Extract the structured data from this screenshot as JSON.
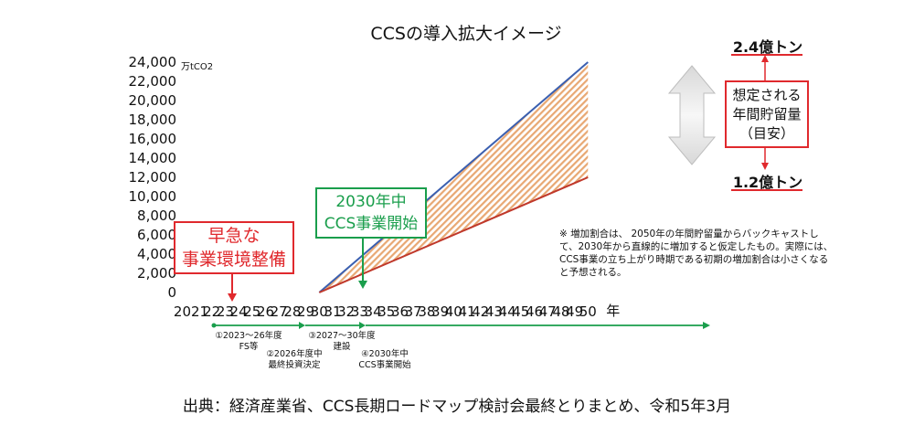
{
  "title": "CCSの導入拡大イメージ",
  "chart_data": {
    "type": "line",
    "y_unit": "万tCO2",
    "x_unit": "年",
    "ylim": [
      0,
      24000
    ],
    "y_ticks": [
      "24,000",
      "22,000",
      "20,000",
      "18,000",
      "16,000",
      "14,000",
      "12,000",
      "10,000",
      "8,000",
      "6,000",
      "4,000",
      "2,000",
      "0"
    ],
    "y_tick_values": [
      24000,
      22000,
      20000,
      18000,
      16000,
      14000,
      12000,
      10000,
      8000,
      6000,
      4000,
      2000,
      0
    ],
    "x_ticks": [
      "2021",
      "22",
      "23",
      "24",
      "25",
      "26",
      "27",
      "28",
      "29",
      "30",
      "31",
      "32",
      "33",
      "34",
      "35",
      "36",
      "37",
      "38",
      "39",
      "40",
      "41",
      "42",
      "43",
      "44",
      "45",
      "46",
      "47",
      "48",
      "49",
      "50"
    ],
    "x_tick_years": [
      2021,
      2022,
      2023,
      2024,
      2025,
      2026,
      2027,
      2028,
      2029,
      2030,
      2031,
      2032,
      2033,
      2034,
      2035,
      2036,
      2037,
      2038,
      2039,
      2040,
      2041,
      2042,
      2043,
      2044,
      2045,
      2046,
      2047,
      2048,
      2049,
      2050
    ],
    "series": [
      {
        "name": "",
        "color": "#3a5fb0",
        "x": [
          2030,
          2050
        ],
        "y": [
          0,
          24000
        ]
      },
      {
        "name": "",
        "color": "#c0392b",
        "x": [
          2030,
          2050
        ],
        "y": [
          0,
          12000
        ]
      }
    ],
    "band_color": "#e8a873",
    "grid": false,
    "legend": "none"
  },
  "annotations": {
    "upper_label": "2.4億トン",
    "lower_label": "1.2億トン",
    "capacity_lines": [
      "想定される",
      "年間貯留量",
      "（目安）"
    ],
    "urgent_lines": [
      "早急な",
      "事業環境整備"
    ],
    "start_lines": [
      "2030年中",
      "CCS事業開始"
    ],
    "note": "※ 増加割合は、 2050年の年間貯留量からバックキャストして、2030年から直線的に増加すると仮定したもの。実際には、CCS事業の立ち上がり時期である初期の増加割合は小さくなると予想される。"
  },
  "milestones": {
    "m1": [
      "①2023～26年度",
      "FS等"
    ],
    "m2": [
      "②2026年度中",
      "最終投資決定"
    ],
    "m3": [
      "③2027～30年度",
      "建設"
    ],
    "m4": [
      "④2030年中",
      "CCS事業開始"
    ]
  },
  "colors": {
    "red": "#e0292d",
    "green": "#1a9e4c",
    "blue": "#3a5fb0"
  },
  "source": "出典：経済産業省、CCS長期ロードマップ検討会最終とりまとめ、令和5年3月"
}
